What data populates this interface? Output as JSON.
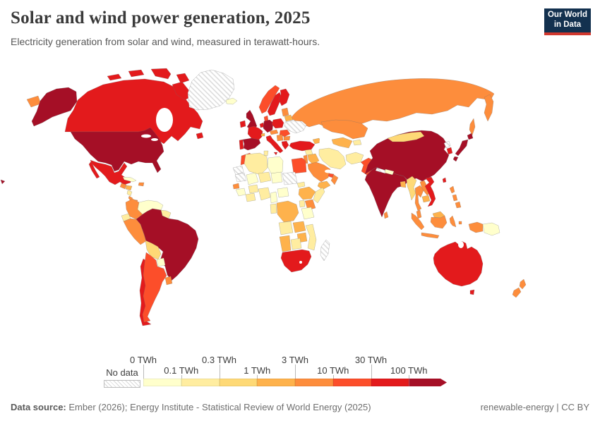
{
  "header": {
    "title": "Solar and wind power generation, 2025",
    "subtitle": "Electricity generation from solar and wind, measured in terawatt-hours.",
    "logo_line1": "Our World",
    "logo_line2": "in Data"
  },
  "footer": {
    "source_label": "Data source:",
    "source_text": " Ember (2026); Energy Institute - Statistical Review of World Energy (2025)",
    "right_text": "renewable-energy | CC BY"
  },
  "colors": {
    "logo_bg": "#13314f",
    "logo_accent": "#d1382e",
    "title_text": "#3a3a3a",
    "no_data_hatch": "#d8d8d8"
  },
  "chart_data": {
    "type": "choropleth",
    "title": "Solar and wind power generation",
    "year": "2025",
    "unit": "TWh",
    "legend": {
      "no_data_label": "No data",
      "tick_labels": [
        "0 TWh",
        "0.1 TWh",
        "0.3 TWh",
        "1 TWh",
        "3 TWh",
        "10 TWh",
        "30 TWh",
        "100 TWh"
      ],
      "bin_keys": [
        "0-0.1",
        "0.1-0.3",
        "0.3-1",
        "1-3",
        "3-10",
        "10-30",
        "30-100",
        "100+"
      ],
      "bin_colors": [
        "#ffffcc",
        "#ffeda0",
        "#fed976",
        "#feb24c",
        "#fd8d3c",
        "#fc4e2a",
        "#e31a1c",
        "#a50f26"
      ]
    },
    "countries": {
      "United States": "100+",
      "Hawaii": "100+",
      "Canada": "30-100",
      "Mexico": "30-100",
      "Guatemala": "3-10",
      "Honduras": "1-3",
      "Nicaragua": "0.1-0.3",
      "Costa Rica": "3-10",
      "Panama": "3-10",
      "Cuba": "0-0.1",
      "Hispaniola": "3-10",
      "Greenland": "no-data",
      "Iceland": "0-0.1",
      "Colombia": "3-10",
      "Venezuela": "0-0.1",
      "Guianas": "0.1-0.3",
      "Ecuador": "0.1-0.3",
      "Peru": "3-10",
      "Brazil": "100+",
      "Bolivia": "0.3-1",
      "Paraguay": "0-0.1",
      "Uruguay": "3-10",
      "Argentina": "10-30",
      "Chile": "30-100",
      "United Kingdom": "100+",
      "Ireland": "30-100",
      "Norway": "10-30",
      "Sweden": "30-100",
      "Finland": "30-100",
      "Denmark": "10-30",
      "Baltics": "3-10",
      "Belarus": "1-3",
      "Poland": "30-100",
      "Germany": "100+",
      "Netherlands": "30-100",
      "France": "30-100",
      "Spain": "100+",
      "Portugal": "30-100",
      "Switzerland": "1-3",
      "Austria-Czechia": "3-10",
      "Italy": "30-100",
      "Balkans": "3-10",
      "Bulgaria": "3-10",
      "Romania": "10-30",
      "Greece": "30-100",
      "Ukraine": "no-data",
      "Turkey": "30-100",
      "Russia": "3-10",
      "Kazakhstan": "3-10",
      "Central Asia": "1-3",
      "Kyrgyzstan-Tajikistan": "0.1-0.3",
      "Caucasus": "1-3",
      "Syria": "0.1-0.3",
      "Iraq": "1-3",
      "Iran": "0.1-0.3",
      "Afghanistan": "0.1-0.3",
      "Pakistan": "10-30",
      "Saudi Arabia": "3-10",
      "Yemen": "1-3",
      "Oman": "3-10",
      "UAE": "10-30",
      "Israel-Jordan": "3-10",
      "Egypt": "10-30",
      "Morocco": "10-30",
      "Western Sahara": "no-data",
      "Algeria": "0.1-0.3",
      "Tunisia": "0.1-0.3",
      "Libya": "0-0.1",
      "Mauritania": "no-data",
      "Mali": "0-0.1",
      "Niger": "0.1-0.3",
      "Chad": "0-0.1",
      "Sudan": "no-data",
      "Eritrea": "0.1-0.3",
      "Senegal": "3-10",
      "Guinea": "0-0.1",
      "Burkina Faso": "0.1-0.3",
      "Ivory Coast-Ghana": "0.1-0.3",
      "Nigeria": "0.1-0.3",
      "Cameroon": "0-0.1",
      "Central African Republic": "0-0.1",
      "Ethiopia": "1-3",
      "Somalia": "0.1-0.3",
      "Kenya": "3-10",
      "Uganda": "0.1-0.3",
      "Tanzania": "0-0.1",
      "Congo-Gabon": "0.1-0.3",
      "DR Congo": "1-3",
      "Angola": "0.1-0.3",
      "Zambia": "1-3",
      "Zimbabwe": "1-3",
      "Mozambique": "0.1-0.3",
      "Namibia": "1-3",
      "Botswana": "0.1-0.3",
      "South Africa": "30-100",
      "Madagascar": "no-data",
      "India": "100+",
      "Kashmir": "no-data",
      "Nepal": "0-0.1",
      "Bangladesh": "1-3",
      "Sri Lanka": "3-10",
      "Myanmar": "0.3-1",
      "Thailand": "3-10",
      "Laos": "3-10",
      "Cambodia": "1-3",
      "Vietnam": "30-100",
      "China": "100+",
      "Mongolia": "0.3-1",
      "North Korea": "no-data",
      "South Korea": "30-100",
      "Japan": "100+",
      "Taiwan": "30-100",
      "Philippines": "3-10",
      "Malaysia": "3-10",
      "Malaysia-Borneo": "1-3",
      "Indonesia": "3-10",
      "Papua New Guinea": "0-0.1",
      "Australia": "30-100",
      "New Zealand": "3-10"
    }
  }
}
